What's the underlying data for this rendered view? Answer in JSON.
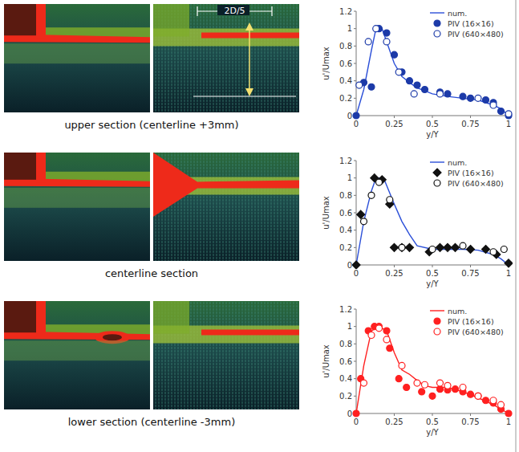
{
  "figure": {
    "annotation": "2D/5",
    "sections": [
      {
        "caption": "upper section (centerline +3mm)"
      },
      {
        "caption": "centerline section"
      },
      {
        "caption": "lower section (centerline -3mm)"
      }
    ]
  },
  "chart_data": [
    {
      "type": "line",
      "xlabel": "y/Y",
      "ylabel": "u'/Umax",
      "xlim": [
        0,
        1
      ],
      "xticks": [
        0,
        0.25,
        0.5,
        0.75,
        1
      ],
      "ylim": [
        0,
        1.2
      ],
      "yticks": [
        0,
        0.2,
        0.4,
        0.6,
        0.8,
        1,
        1.2
      ],
      "legend": "upper right",
      "grid": false,
      "series": [
        {
          "name": "num.",
          "type": "line",
          "color": "#2b4fd8",
          "line_style": "solid",
          "x": [
            0,
            0.05,
            0.1,
            0.13,
            0.17,
            0.2,
            0.25,
            0.3,
            0.35,
            0.4,
            0.5,
            0.6,
            0.7,
            0.8,
            0.9,
            0.95,
            1
          ],
          "values": [
            0,
            0.3,
            0.75,
            1.0,
            1.0,
            0.85,
            0.6,
            0.45,
            0.38,
            0.32,
            0.25,
            0.22,
            0.2,
            0.18,
            0.12,
            0.08,
            0
          ]
        },
        {
          "name": "PIV (16×16)",
          "type": "scatter",
          "color": "#1c3aa8",
          "marker": "circle",
          "x": [
            0,
            0.05,
            0.1,
            0.15,
            0.2,
            0.25,
            0.3,
            0.35,
            0.4,
            0.45,
            0.55,
            0.6,
            0.7,
            0.75,
            0.85,
            0.9,
            0.95,
            1
          ],
          "values": [
            0,
            0.38,
            0.33,
            1.0,
            0.95,
            0.7,
            0.5,
            0.4,
            0.35,
            0.3,
            0.27,
            0.25,
            0.22,
            0.2,
            0.18,
            0.15,
            0.05,
            0
          ]
        },
        {
          "name": "PIV (640×480)",
          "type": "scatter",
          "color": "#1c3aa8",
          "marker": "open-circle",
          "x": [
            0.02,
            0.08,
            0.13,
            0.2,
            0.28,
            0.38,
            0.55,
            0.8,
            0.9,
            1
          ],
          "values": [
            0.35,
            0.85,
            1.0,
            0.85,
            0.5,
            0.25,
            0.25,
            0.2,
            0.12,
            0.02
          ]
        }
      ]
    },
    {
      "type": "line",
      "xlabel": "y/Y",
      "ylabel": "u'/Umax",
      "xlim": [
        0,
        1
      ],
      "xticks": [
        0,
        0.25,
        0.5,
        0.75,
        1
      ],
      "ylim": [
        0,
        1.2
      ],
      "yticks": [
        0,
        0.2,
        0.4,
        0.6,
        0.8,
        1,
        1.2
      ],
      "legend": "upper right",
      "grid": false,
      "series": [
        {
          "name": "num.",
          "type": "line",
          "color": "#2b4fd8",
          "line_style": "solid",
          "x": [
            0,
            0.05,
            0.1,
            0.13,
            0.18,
            0.25,
            0.3,
            0.35,
            0.4,
            0.5,
            0.6,
            0.7,
            0.8,
            0.9,
            0.95,
            1
          ],
          "values": [
            0,
            0.5,
            0.85,
            1.0,
            1.0,
            0.7,
            0.5,
            0.35,
            0.22,
            0.18,
            0.18,
            0.18,
            0.17,
            0.12,
            0.07,
            0
          ]
        },
        {
          "name": "PIV (16×16)",
          "type": "scatter",
          "color": "#111111",
          "marker": "diamond",
          "x": [
            0,
            0.03,
            0.12,
            0.17,
            0.22,
            0.25,
            0.3,
            0.35,
            0.48,
            0.55,
            0.6,
            0.65,
            0.75,
            0.85,
            0.92,
            1
          ],
          "values": [
            0,
            0.58,
            1.0,
            0.98,
            0.7,
            0.2,
            0.2,
            0.2,
            0.15,
            0.2,
            0.2,
            0.2,
            0.18,
            0.18,
            0.12,
            0.02
          ]
        },
        {
          "name": "PIV (640×480)",
          "type": "scatter",
          "color": "#111111",
          "marker": "open-circle",
          "x": [
            0.05,
            0.1,
            0.15,
            0.22,
            0.3,
            0.5,
            0.7,
            0.9,
            0.97
          ],
          "values": [
            0.5,
            0.8,
            0.95,
            0.75,
            0.2,
            0.18,
            0.22,
            0.15,
            0.18
          ]
        }
      ]
    },
    {
      "type": "line",
      "xlabel": "y/Y",
      "ylabel": "u'/Umax",
      "xlim": [
        0,
        1
      ],
      "xticks": [
        0,
        0.25,
        0.5,
        0.75,
        1
      ],
      "ylim": [
        0,
        1.2
      ],
      "yticks": [
        0,
        0.2,
        0.4,
        0.6,
        0.8,
        1,
        1.2
      ],
      "legend": "upper right",
      "grid": false,
      "series": [
        {
          "name": "num.",
          "type": "line",
          "color": "#ff2020",
          "line_style": "solid",
          "x": [
            0,
            0.05,
            0.1,
            0.15,
            0.2,
            0.25,
            0.3,
            0.35,
            0.4,
            0.45,
            0.5,
            0.55,
            0.6,
            0.7,
            0.8,
            0.9,
            0.95,
            1
          ],
          "values": [
            0,
            0.55,
            0.95,
            1.0,
            0.95,
            0.7,
            0.5,
            0.45,
            0.38,
            0.32,
            0.3,
            0.3,
            0.3,
            0.25,
            0.18,
            0.1,
            0.05,
            0
          ]
        },
        {
          "name": "PIV (16×16)",
          "type": "scatter",
          "color": "#ff2020",
          "marker": "circle",
          "x": [
            0,
            0.03,
            0.08,
            0.12,
            0.15,
            0.2,
            0.22,
            0.28,
            0.33,
            0.43,
            0.5,
            0.55,
            0.6,
            0.65,
            0.7,
            0.75,
            0.8,
            0.85,
            0.9,
            0.95,
            1
          ],
          "values": [
            0,
            0.4,
            0.95,
            1.0,
            1.0,
            0.95,
            0.75,
            0.4,
            0.3,
            0.25,
            0.2,
            0.28,
            0.27,
            0.28,
            0.25,
            0.22,
            0.2,
            0.15,
            0.12,
            0.05,
            0
          ]
        },
        {
          "name": "PIV (640×480)",
          "type": "scatter",
          "color": "#ff2020",
          "marker": "open-circle",
          "x": [
            0.05,
            0.1,
            0.15,
            0.2,
            0.3,
            0.4,
            0.45,
            0.55,
            0.6,
            0.7,
            0.8,
            0.9,
            0.95
          ],
          "values": [
            0.35,
            0.9,
            0.98,
            0.85,
            0.55,
            0.35,
            0.33,
            0.35,
            0.32,
            0.3,
            0.2,
            0.15,
            0.1
          ]
        }
      ]
    }
  ]
}
